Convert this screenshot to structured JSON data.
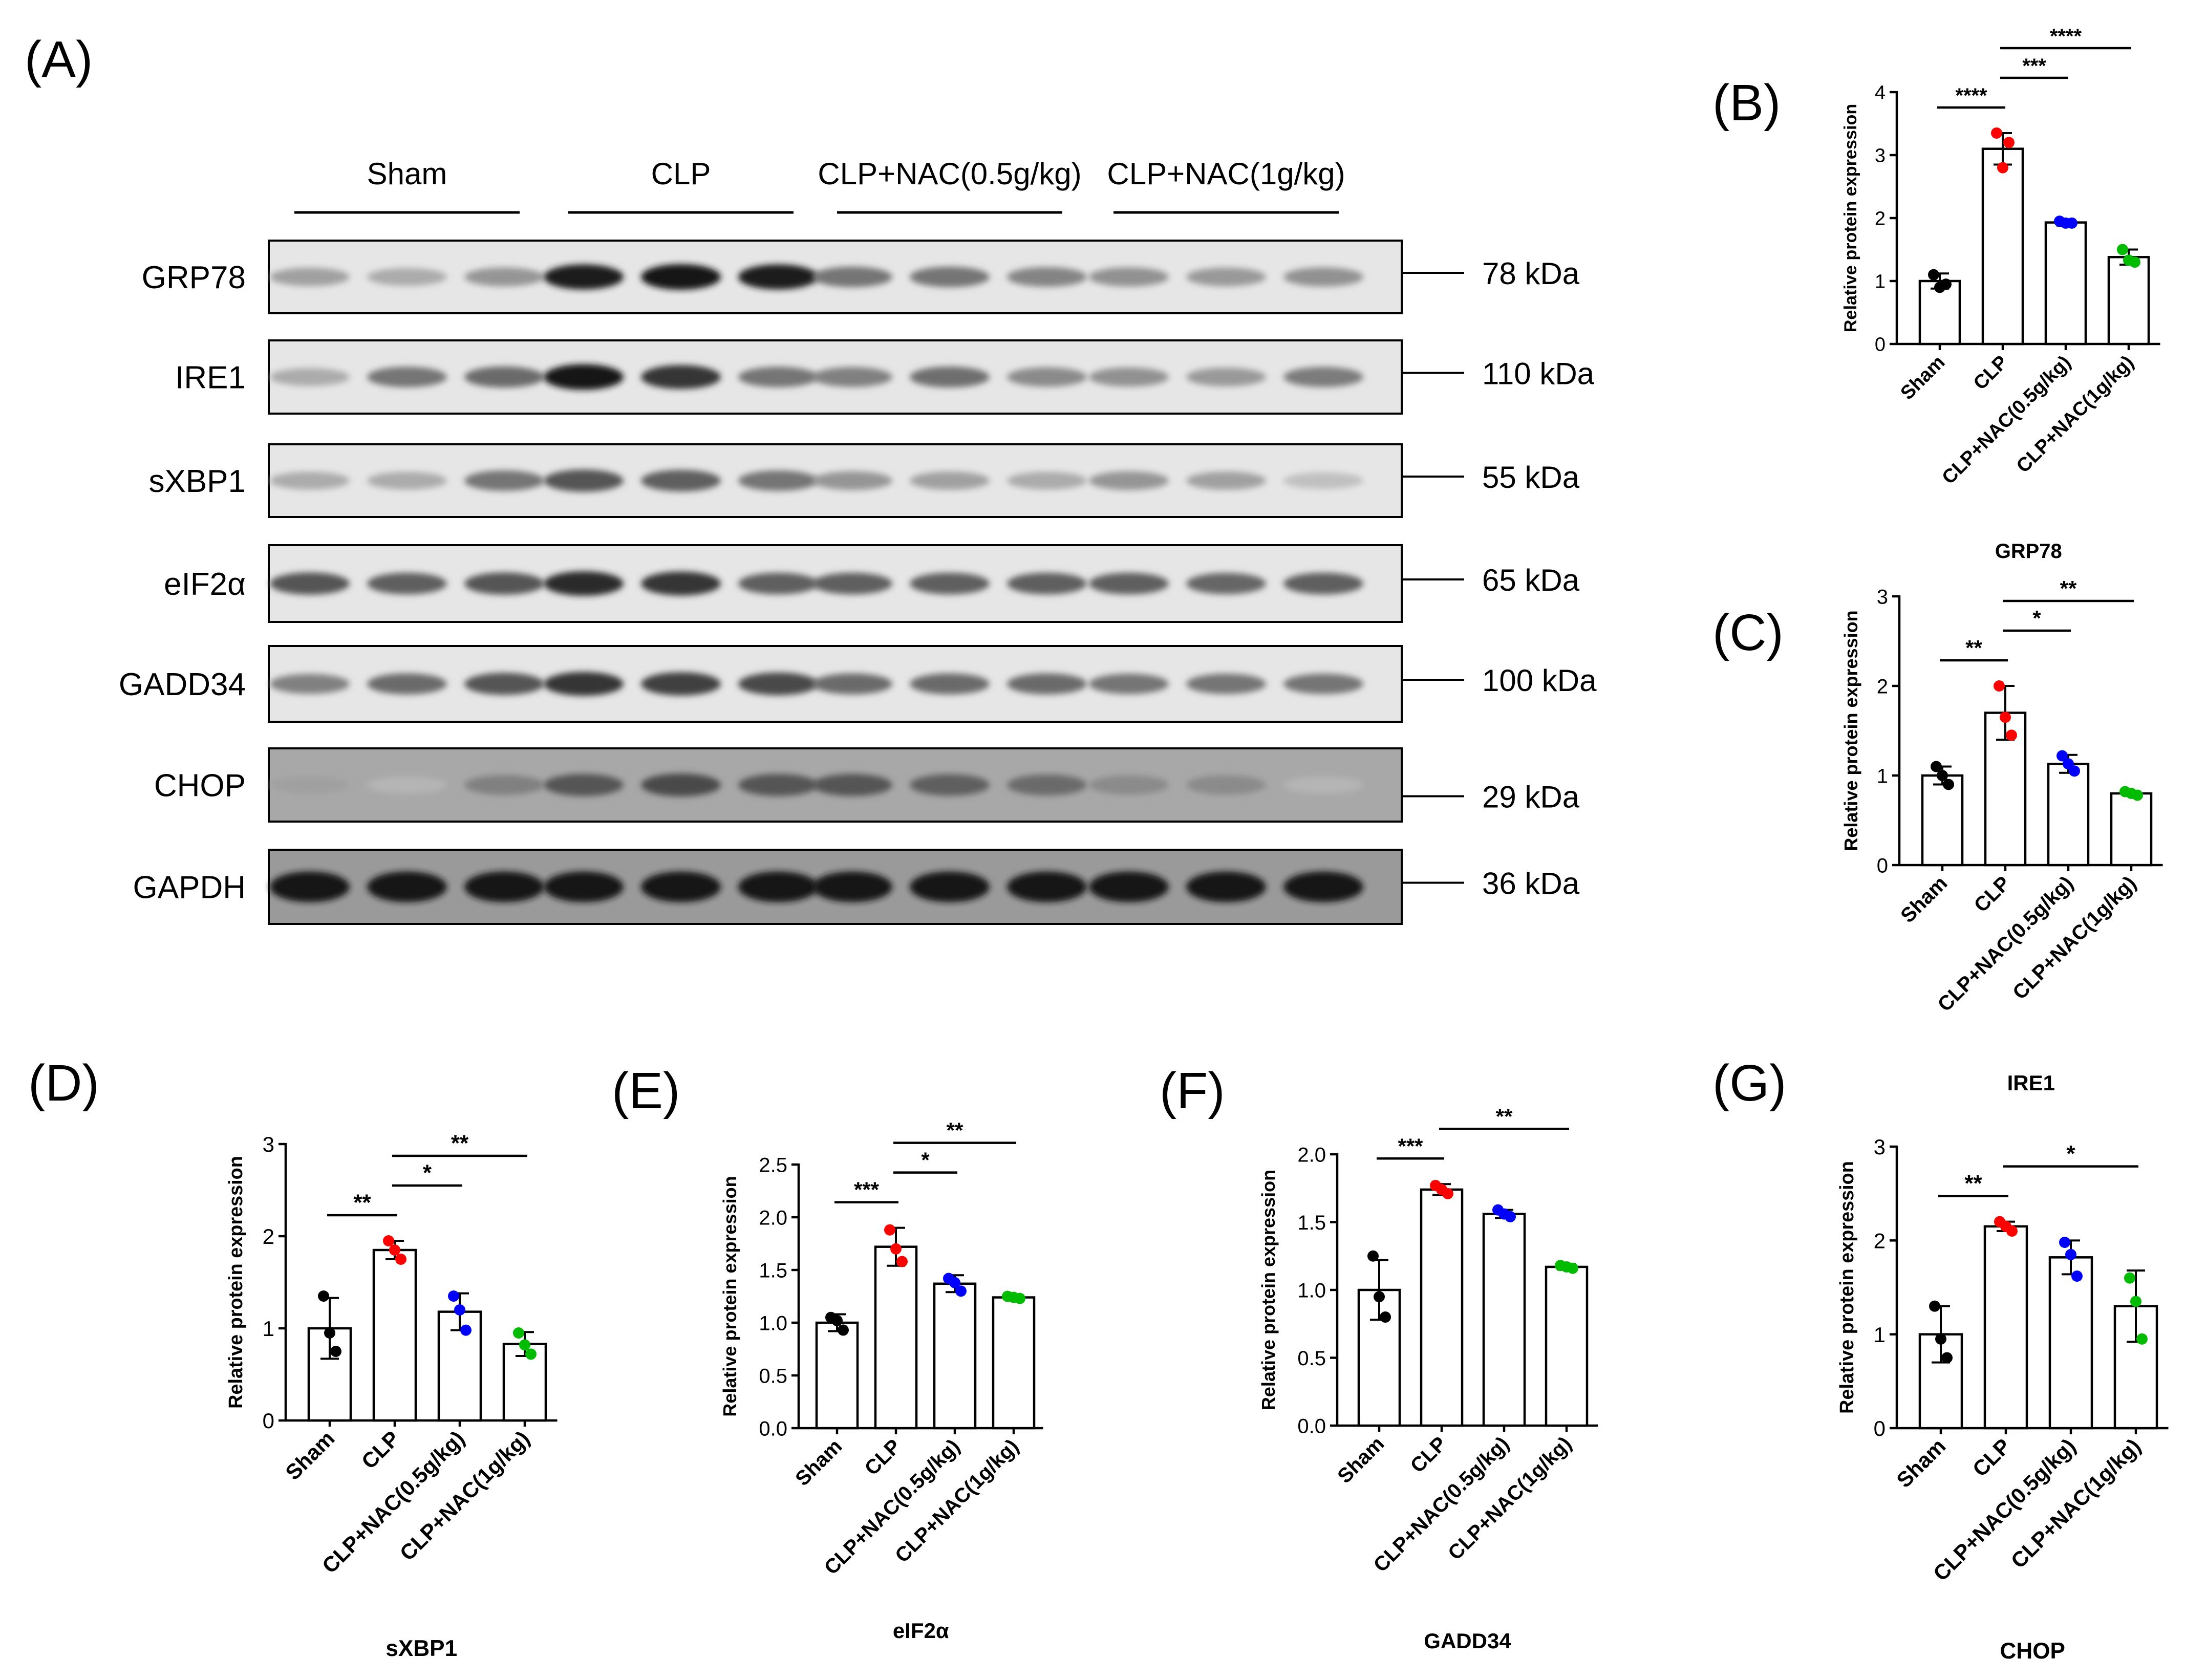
{
  "panel_labels": [
    "(A)",
    "(B)",
    "(C)",
    "(D)",
    "(E)",
    "(F)",
    "(G)"
  ],
  "blot": {
    "groups": [
      "Sham",
      "CLP",
      "CLP+NAC(0.5g/kg)",
      "CLP+NAC(1g/kg)"
    ],
    "proteins": [
      {
        "name": "GRP78",
        "mw": "78 kDa",
        "intensity": [
          0.35,
          0.3,
          0.4,
          0.95,
          1.0,
          0.95,
          0.55,
          0.55,
          0.48,
          0.42,
          0.38,
          0.42
        ]
      },
      {
        "name": "IRE1",
        "mw": "110 kDa",
        "intensity": [
          0.3,
          0.55,
          0.6,
          1.0,
          0.85,
          0.55,
          0.5,
          0.58,
          0.45,
          0.42,
          0.38,
          0.52
        ]
      },
      {
        "name": "sXBP1",
        "mw": "55 kDa",
        "intensity": [
          0.3,
          0.3,
          0.55,
          0.7,
          0.65,
          0.55,
          0.4,
          0.35,
          0.3,
          0.4,
          0.35,
          0.2
        ]
      },
      {
        "name": "eIF2α",
        "mw": "65 kDa",
        "intensity": [
          0.7,
          0.65,
          0.7,
          0.9,
          0.85,
          0.65,
          0.65,
          0.65,
          0.65,
          0.65,
          0.62,
          0.65
        ]
      },
      {
        "name": "GADD34",
        "mw": "100 kDa",
        "intensity": [
          0.5,
          0.6,
          0.7,
          0.85,
          0.8,
          0.75,
          0.6,
          0.6,
          0.6,
          0.55,
          0.55,
          0.55
        ]
      },
      {
        "name": "CHOP",
        "mw": "29 kDa",
        "intensity": [
          0.35,
          0.25,
          0.5,
          0.7,
          0.75,
          0.7,
          0.7,
          0.65,
          0.6,
          0.45,
          0.45,
          0.25
        ]
      },
      {
        "name": "GAPDH",
        "mw": "36 kDa",
        "intensity": [
          1.0,
          1.0,
          1.0,
          1.0,
          1.0,
          1.0,
          1.0,
          1.0,
          1.0,
          1.0,
          1.0,
          1.0
        ]
      }
    ]
  },
  "colors": {
    "Sham": "#000000",
    "CLP": "#ff0000",
    "CLP+NAC(0.5g/kg)": "#0000ff",
    "CLP+NAC(1g/kg)": "#00bb00"
  },
  "chart_data": [
    {
      "panel": "(B)",
      "type": "bar",
      "title": "GRP78",
      "ylabel": "Relative protein expression",
      "categories": [
        "Sham",
        "CLP",
        "CLP+NAC(0.5g/kg)",
        "CLP+NAC(1g/kg)"
      ],
      "values": [
        1.0,
        3.1,
        1.93,
        1.38
      ],
      "sd": [
        0.12,
        0.25,
        0.05,
        0.12
      ],
      "points": [
        [
          1.1,
          0.95,
          0.9
        ],
        [
          3.35,
          3.2,
          2.8
        ],
        [
          1.95,
          1.92,
          1.92
        ],
        [
          1.5,
          1.3,
          1.33
        ]
      ],
      "ylim": [
        0,
        4
      ],
      "yticks": [
        "0",
        "1",
        "2",
        "3",
        "4"
      ],
      "significance": [
        {
          "from": 0,
          "to": 1,
          "label": "****"
        },
        {
          "from": 1,
          "to": 2,
          "label": "***"
        },
        {
          "from": 1,
          "to": 3,
          "label": "****"
        }
      ]
    },
    {
      "panel": "(C)",
      "type": "bar",
      "title": "IRE1",
      "ylabel": "Relative protein expression",
      "categories": [
        "Sham",
        "CLP",
        "CLP+NAC(0.5g/kg)",
        "CLP+NAC(1g/kg)"
      ],
      "values": [
        1.0,
        1.7,
        1.13,
        0.8
      ],
      "sd": [
        0.1,
        0.3,
        0.1,
        0.02
      ],
      "points": [
        [
          1.1,
          0.9,
          1.0
        ],
        [
          2.0,
          1.45,
          1.65
        ],
        [
          1.22,
          1.05,
          1.13
        ],
        [
          0.82,
          0.78,
          0.8
        ]
      ],
      "ylim": [
        0,
        3
      ],
      "yticks": [
        "0",
        "1",
        "2",
        "3"
      ],
      "significance": [
        {
          "from": 0,
          "to": 1,
          "label": "**"
        },
        {
          "from": 1,
          "to": 2,
          "label": "*"
        },
        {
          "from": 1,
          "to": 3,
          "label": "**"
        }
      ]
    },
    {
      "panel": "(D)",
      "type": "bar",
      "title": "sXBP1",
      "ylabel": "Relative protein expression",
      "categories": [
        "Sham",
        "CLP",
        "CLP+NAC(0.5g/kg)",
        "CLP+NAC(1g/kg)"
      ],
      "values": [
        1.0,
        1.85,
        1.18,
        0.83
      ],
      "sd": [
        0.33,
        0.1,
        0.2,
        0.13
      ],
      "points": [
        [
          1.35,
          0.75,
          0.95
        ],
        [
          1.95,
          1.75,
          1.85
        ],
        [
          1.35,
          0.98,
          1.2
        ],
        [
          0.95,
          0.72,
          0.82
        ]
      ],
      "ylim": [
        0,
        3
      ],
      "yticks": [
        "0",
        "1",
        "2",
        "3"
      ],
      "significance": [
        {
          "from": 0,
          "to": 1,
          "label": "**"
        },
        {
          "from": 1,
          "to": 2,
          "label": "*"
        },
        {
          "from": 1,
          "to": 3,
          "label": "**"
        }
      ]
    },
    {
      "panel": "(E)",
      "type": "bar",
      "title": "eIF2α",
      "ylabel": "Relative protein expression",
      "categories": [
        "Sham",
        "CLP",
        "CLP+NAC(0.5g/kg)",
        "CLP+NAC(1g/kg)"
      ],
      "values": [
        1.0,
        1.72,
        1.37,
        1.24
      ],
      "sd": [
        0.08,
        0.18,
        0.08,
        0.02
      ],
      "points": [
        [
          1.05,
          0.93,
          1.02
        ],
        [
          1.88,
          1.58,
          1.7
        ],
        [
          1.42,
          1.3,
          1.38
        ],
        [
          1.25,
          1.23,
          1.24
        ]
      ],
      "ylim": [
        0,
        2.5
      ],
      "yticks": [
        "0.0",
        "0.5",
        "1.0",
        "1.5",
        "2.0",
        "2.5"
      ],
      "significance": [
        {
          "from": 0,
          "to": 1,
          "label": "***"
        },
        {
          "from": 1,
          "to": 2,
          "label": "*"
        },
        {
          "from": 1,
          "to": 3,
          "label": "**"
        }
      ]
    },
    {
      "panel": "(F)",
      "type": "bar",
      "title": "GADD34",
      "ylabel": "Relative protein expression",
      "categories": [
        "Sham",
        "CLP",
        "CLP+NAC(0.5g/kg)",
        "CLP+NAC(1g/kg)"
      ],
      "values": [
        1.0,
        1.74,
        1.56,
        1.17
      ],
      "sd": [
        0.22,
        0.04,
        0.03,
        0.02
      ],
      "points": [
        [
          1.25,
          0.8,
          0.95
        ],
        [
          1.77,
          1.71,
          1.74
        ],
        [
          1.59,
          1.54,
          1.56
        ],
        [
          1.18,
          1.16,
          1.17
        ]
      ],
      "ylim": [
        0,
        2.0
      ],
      "yticks": [
        "0.0",
        "0.5",
        "1.0",
        "1.5",
        "2.0"
      ],
      "significance": [
        {
          "from": 0,
          "to": 1,
          "label": "***"
        },
        {
          "from": 1,
          "to": 3,
          "label": "**"
        }
      ]
    },
    {
      "panel": "(G)",
      "type": "bar",
      "title": "CHOP",
      "ylabel": "Relative protein expression",
      "categories": [
        "Sham",
        "CLP",
        "CLP+NAC(0.5g/kg)",
        "CLP+NAC(1g/kg)"
      ],
      "values": [
        1.0,
        2.15,
        1.82,
        1.3
      ],
      "sd": [
        0.3,
        0.05,
        0.18,
        0.38
      ],
      "points": [
        [
          1.3,
          0.75,
          0.95
        ],
        [
          2.2,
          2.1,
          2.15
        ],
        [
          1.98,
          1.62,
          1.85
        ],
        [
          1.6,
          0.95,
          1.35
        ]
      ],
      "ylim": [
        0,
        3
      ],
      "yticks": [
        "0",
        "1",
        "2",
        "3"
      ],
      "significance": [
        {
          "from": 0,
          "to": 1,
          "label": "**"
        },
        {
          "from": 1,
          "to": 3,
          "label": "*"
        }
      ]
    }
  ]
}
